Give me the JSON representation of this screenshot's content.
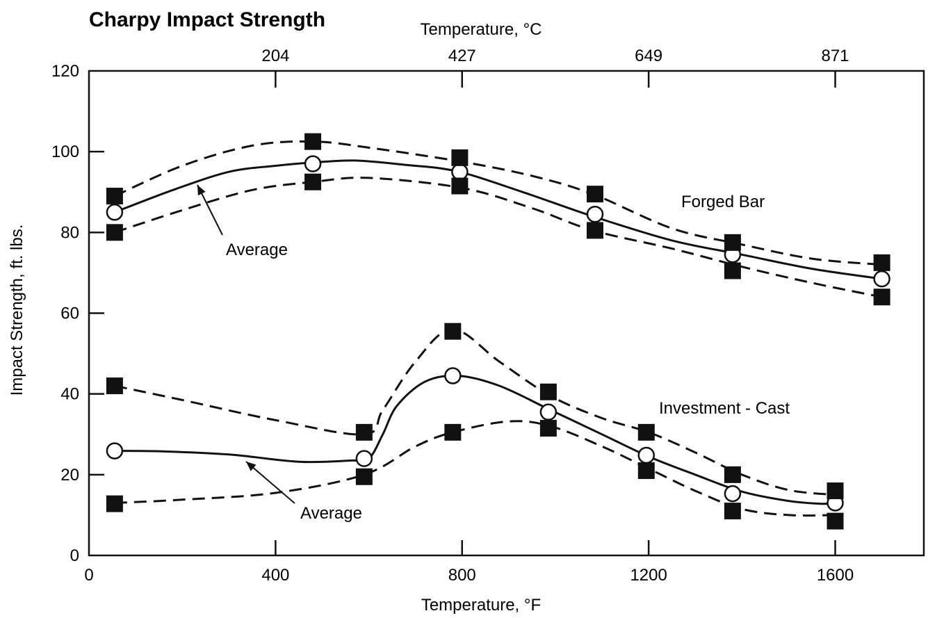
{
  "chart_data": {
    "type": "line",
    "title": "Charpy Impact Strength",
    "xlabel": "Temperature, °F",
    "ylabel": "Impact Strength, ft. lbs.",
    "x2label": "Temperature, °C",
    "xlim": [
      0,
      1790
    ],
    "ylim": [
      0,
      120
    ],
    "xticks": [
      0,
      400,
      800,
      1200,
      1600
    ],
    "yticks": [
      0,
      20,
      40,
      60,
      80,
      100,
      120
    ],
    "x2ticks": [
      {
        "label": "204",
        "f": 400
      },
      {
        "label": "427",
        "f": 800
      },
      {
        "label": "649",
        "f": 1200
      },
      {
        "label": "871",
        "f": 1600
      }
    ],
    "grid": false,
    "annotations": {
      "forged_label": "Forged Bar",
      "cast_label": "Investment - Cast",
      "average_label_1": "Average",
      "average_label_2": "Average"
    },
    "series": [
      {
        "group": "forged",
        "role": "avg",
        "x": [
          55,
          180,
          300,
          400,
          480,
          570,
          680,
          790,
          930,
          1080,
          1250,
          1400,
          1550,
          1700
        ],
        "y": [
          85,
          90.5,
          95,
          96.5,
          97.3,
          97.8,
          96.7,
          95.1,
          90,
          84,
          78,
          74.5,
          71,
          68.5
        ],
        "markers": [
          [
            55,
            85
          ],
          [
            480,
            97
          ],
          [
            795,
            95
          ],
          [
            1085,
            84.5
          ],
          [
            1380,
            74.5
          ],
          [
            1700,
            68.5
          ]
        ]
      },
      {
        "group": "forged",
        "role": "upper",
        "x": [
          55,
          200,
          350,
          480,
          600,
          800,
          950,
          1080,
          1250,
          1400,
          1550,
          1700
        ],
        "y": [
          89,
          96.5,
          101.5,
          102.5,
          101,
          97.5,
          94,
          89.5,
          81,
          77,
          73.5,
          72
        ],
        "markers": [
          [
            55,
            89
          ],
          [
            480,
            102.5
          ],
          [
            795,
            98.5
          ],
          [
            1085,
            89.5
          ],
          [
            1380,
            77.5
          ],
          [
            1700,
            72.5
          ]
        ]
      },
      {
        "group": "forged",
        "role": "lower",
        "x": [
          55,
          200,
          350,
          480,
          600,
          800,
          950,
          1080,
          1250,
          1400,
          1550,
          1700
        ],
        "y": [
          80,
          85.5,
          90.5,
          92.5,
          93.5,
          91,
          86,
          80.5,
          76,
          71.5,
          67.5,
          64
        ],
        "markers": [
          [
            55,
            80
          ],
          [
            480,
            92.5
          ],
          [
            795,
            91.5
          ],
          [
            1085,
            80.5
          ],
          [
            1380,
            70.5
          ],
          [
            1700,
            64
          ]
        ]
      },
      {
        "group": "cast",
        "role": "avg",
        "x": [
          55,
          150,
          300,
          450,
          560,
          600,
          630,
          660,
          720,
          790,
          880,
          990,
          1100,
          1200,
          1300,
          1400,
          1500,
          1570,
          1600
        ],
        "y": [
          25.9,
          25.8,
          25,
          23.2,
          23.5,
          24,
          30,
          37,
          43,
          44.5,
          42,
          36,
          30,
          24.5,
          20,
          15.8,
          13.5,
          12.8,
          13
        ],
        "markers": [
          [
            55,
            25.9
          ],
          [
            590,
            24
          ],
          [
            780,
            44.5
          ],
          [
            985,
            35.5
          ],
          [
            1195,
            24.8
          ],
          [
            1380,
            15.3
          ],
          [
            1600,
            13
          ]
        ]
      },
      {
        "group": "cast",
        "role": "upper",
        "x": [
          55,
          200,
          400,
          590,
          630,
          700,
          780,
          880,
          990,
          1100,
          1200,
          1300,
          1400,
          1500,
          1600
        ],
        "y": [
          42,
          38.5,
          33.5,
          30,
          36,
          48,
          56,
          48,
          39.5,
          34,
          30.5,
          25.5,
          20,
          16.2,
          15
        ],
        "markers": [
          [
            55,
            42
          ],
          [
            590,
            30.5
          ],
          [
            780,
            55.5
          ],
          [
            985,
            40.5
          ],
          [
            1195,
            30.5
          ],
          [
            1380,
            20
          ],
          [
            1600,
            16
          ]
        ]
      },
      {
        "group": "cast",
        "role": "lower",
        "x": [
          55,
          200,
          400,
          590,
          700,
          780,
          900,
          990,
          1100,
          1200,
          1300,
          1400,
          1500,
          1600
        ],
        "y": [
          13,
          13.8,
          15.5,
          20,
          27,
          30.5,
          33.2,
          32,
          27,
          21.5,
          16,
          11.5,
          10,
          10
        ],
        "markers": [
          [
            55,
            12.8
          ],
          [
            590,
            19.5
          ],
          [
            780,
            30.5
          ],
          [
            985,
            31.5
          ],
          [
            1195,
            21
          ],
          [
            1380,
            11
          ],
          [
            1600,
            8.5
          ]
        ]
      }
    ]
  }
}
